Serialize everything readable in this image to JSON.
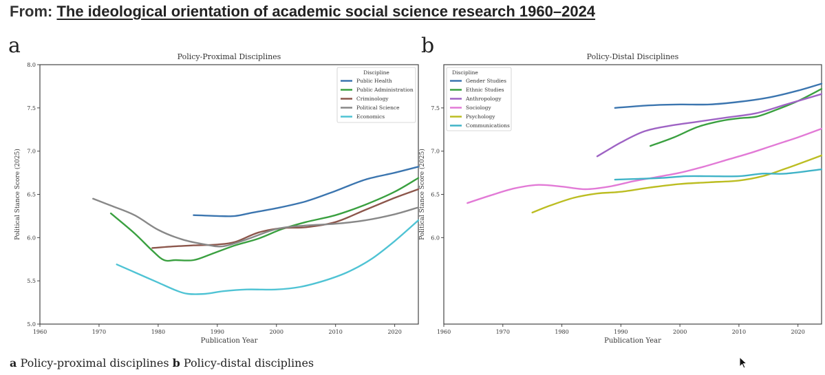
{
  "header": {
    "prefix": "From: ",
    "title_link": "The ideological orientation of academic social science research 1960–2024"
  },
  "caption": {
    "a_label": "a",
    "a_text": " Policy-proximal disciplines ",
    "b_label": "b",
    "b_text": " Policy-distal disciplines"
  },
  "chart_data": [
    {
      "type": "line",
      "panel_label": "a",
      "title": "Policy-Proximal Disciplines",
      "xlabel": "Publication Year",
      "ylabel": "Political Stance Score (2025)",
      "xlim": [
        1960,
        2024
      ],
      "ylim": [
        5.0,
        8.0
      ],
      "xticks": [
        "1960",
        "1970",
        "1980",
        "1990",
        "2000",
        "2010",
        "2020"
      ],
      "yticks": [
        "5.0",
        "5.5",
        "6.0",
        "6.5",
        "7.0",
        "7.5",
        "8.0"
      ],
      "legend_title": "Discipline",
      "legend_position": "top-right",
      "series": [
        {
          "name": "Public Health",
          "color": "#3b75af",
          "x": [
            1986,
            1990,
            1993,
            1996,
            2000,
            2005,
            2010,
            2015,
            2020,
            2024
          ],
          "y": [
            6.26,
            6.25,
            6.25,
            6.29,
            6.34,
            6.42,
            6.54,
            6.67,
            6.75,
            6.82
          ]
        },
        {
          "name": "Public Administration",
          "color": "#3aa040",
          "x": [
            1972,
            1976,
            1979,
            1981,
            1983,
            1986,
            1989,
            1993,
            1997,
            2001,
            2005,
            2010,
            2015,
            2020,
            2024
          ],
          "y": [
            6.28,
            6.05,
            5.85,
            5.74,
            5.74,
            5.74,
            5.81,
            5.91,
            5.99,
            6.1,
            6.18,
            6.26,
            6.38,
            6.53,
            6.69
          ]
        },
        {
          "name": "Criminology",
          "color": "#8c564b",
          "x": [
            1979,
            1983,
            1986,
            1990,
            1993,
            1997,
            2001,
            2005,
            2010,
            2015,
            2020,
            2024
          ],
          "y": [
            5.88,
            5.9,
            5.91,
            5.92,
            5.95,
            6.06,
            6.11,
            6.12,
            6.18,
            6.32,
            6.46,
            6.56
          ]
        },
        {
          "name": "Political Science",
          "color": "#888888",
          "x": [
            1969,
            1972,
            1976,
            1980,
            1984,
            1988,
            1991,
            1995,
            2000,
            2005,
            2010,
            2015,
            2020,
            2024
          ],
          "y": [
            6.45,
            6.37,
            6.26,
            6.09,
            5.98,
            5.92,
            5.9,
            5.98,
            6.1,
            6.14,
            6.16,
            6.2,
            6.27,
            6.35
          ]
        },
        {
          "name": "Economics",
          "color": "#4fc3d4",
          "x": [
            1973,
            1976,
            1980,
            1983,
            1985,
            1988,
            1991,
            1995,
            2000,
            2004,
            2008,
            2012,
            2016,
            2020,
            2024
          ],
          "y": [
            5.69,
            5.6,
            5.48,
            5.39,
            5.35,
            5.35,
            5.38,
            5.4,
            5.4,
            5.43,
            5.5,
            5.6,
            5.75,
            5.96,
            6.2
          ]
        }
      ]
    },
    {
      "type": "line",
      "panel_label": "b",
      "title": "Policy-Distal Disciplines",
      "xlabel": "Publication Year",
      "ylabel": "Political Stance Score (2025)",
      "xlim": [
        1960,
        2024
      ],
      "ylim": [
        5.0,
        8.0
      ],
      "xticks": [
        "1960",
        "1970",
        "1980",
        "1990",
        "2000",
        "2010",
        "2020"
      ],
      "yticks": [
        "6.0",
        "6.5",
        "7.0",
        "7.5"
      ],
      "legend_title": "Discipline",
      "legend_position": "top-left",
      "series": [
        {
          "name": "Gender Studies",
          "color": "#3b75af",
          "x": [
            1989,
            1995,
            2000,
            2005,
            2010,
            2015,
            2020,
            2024
          ],
          "y": [
            7.5,
            7.53,
            7.54,
            7.54,
            7.57,
            7.62,
            7.7,
            7.78
          ]
        },
        {
          "name": "Ethnic Studies",
          "color": "#3aa040",
          "x": [
            1995,
            1999,
            2003,
            2007,
            2010,
            2013,
            2016,
            2020,
            2024
          ],
          "y": [
            7.06,
            7.16,
            7.28,
            7.35,
            7.38,
            7.4,
            7.47,
            7.58,
            7.72
          ]
        },
        {
          "name": "Anthropology",
          "color": "#9e63c4",
          "x": [
            1986,
            1990,
            1994,
            1998,
            2003,
            2008,
            2013,
            2018,
            2024
          ],
          "y": [
            6.94,
            7.1,
            7.23,
            7.29,
            7.34,
            7.39,
            7.44,
            7.54,
            7.66
          ]
        },
        {
          "name": "Sociology",
          "color": "#e27ad6",
          "x": [
            1964,
            1968,
            1972,
            1976,
            1980,
            1984,
            1988,
            1992,
            1996,
            2000,
            2004,
            2008,
            2012,
            2016,
            2020,
            2024
          ],
          "y": [
            6.4,
            6.49,
            6.57,
            6.61,
            6.59,
            6.56,
            6.59,
            6.65,
            6.7,
            6.75,
            6.82,
            6.9,
            6.98,
            7.07,
            7.16,
            7.26
          ]
        },
        {
          "name": "Psychology",
          "color": "#bcbd22",
          "x": [
            1975,
            1978,
            1982,
            1986,
            1990,
            1995,
            2000,
            2005,
            2010,
            2014,
            2018,
            2024
          ],
          "y": [
            6.29,
            6.37,
            6.46,
            6.51,
            6.53,
            6.58,
            6.62,
            6.64,
            6.66,
            6.71,
            6.8,
            6.95
          ]
        },
        {
          "name": "Communications",
          "color": "#3fb3c7",
          "x": [
            1989,
            1993,
            1997,
            2001,
            2005,
            2010,
            2014,
            2018,
            2024
          ],
          "y": [
            6.67,
            6.68,
            6.69,
            6.71,
            6.71,
            6.71,
            6.74,
            6.74,
            6.79
          ]
        }
      ]
    }
  ]
}
